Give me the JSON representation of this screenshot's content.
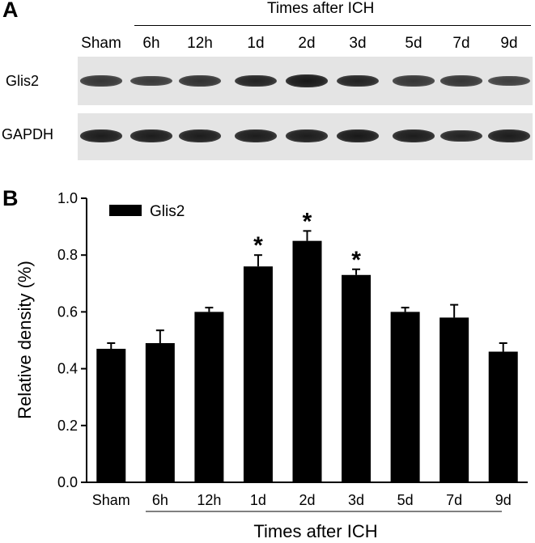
{
  "panels": {
    "a_label": "A",
    "b_label": "B"
  },
  "blot": {
    "header": "Times after ICH",
    "lanes": [
      "Sham",
      "6h",
      "12h",
      "1d",
      "2d",
      "3d",
      "5d",
      "7d",
      "9d"
    ],
    "rows": [
      {
        "label": "Glis2",
        "intensity": [
          0.65,
          0.6,
          0.7,
          0.85,
          0.95,
          0.85,
          0.65,
          0.65,
          0.55
        ]
      },
      {
        "label": "GAPDH",
        "intensity": [
          0.9,
          0.9,
          0.9,
          0.9,
          0.9,
          0.95,
          0.9,
          0.85,
          0.9
        ]
      }
    ]
  },
  "chart_data": {
    "type": "bar",
    "title": "",
    "xlabel": "Times after ICH",
    "ylabel": "Relative density (%)",
    "ylim": [
      0.0,
      1.0
    ],
    "yticks": [
      "0.0",
      "0.2",
      "0.4",
      "0.6",
      "0.8",
      "1.0"
    ],
    "categories": [
      "Sham",
      "6h",
      "12h",
      "1d",
      "2d",
      "3d",
      "5d",
      "7d",
      "9d"
    ],
    "series": [
      {
        "name": "Glis2",
        "values": [
          0.47,
          0.49,
          0.6,
          0.76,
          0.85,
          0.73,
          0.6,
          0.58,
          0.46
        ],
        "errors": [
          0.02,
          0.045,
          0.015,
          0.04,
          0.035,
          0.02,
          0.015,
          0.045,
          0.03
        ],
        "significant": [
          false,
          false,
          false,
          true,
          true,
          true,
          false,
          false,
          false
        ]
      }
    ],
    "significance_marker": "*",
    "legend": {
      "position": "top-left"
    },
    "grid": false,
    "colors": {
      "bar": "#000000"
    }
  }
}
